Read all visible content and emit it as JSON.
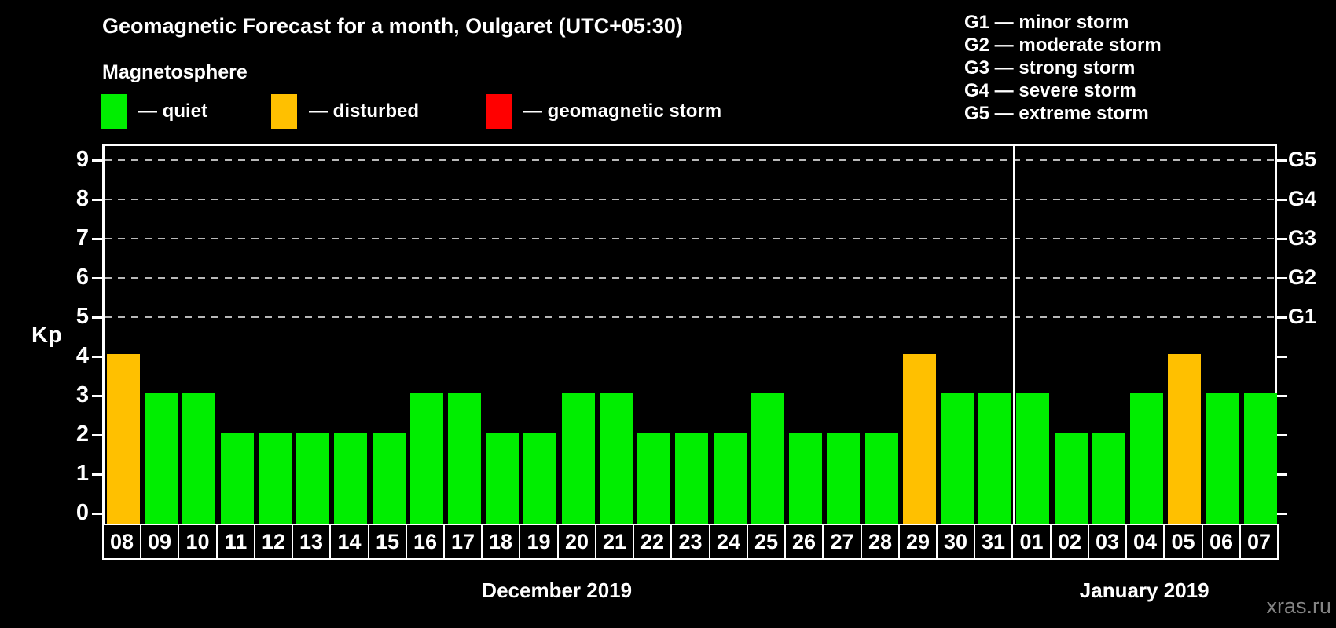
{
  "header": {
    "title": "Geomagnetic Forecast for a month, Oulgaret (UTC+05:30)",
    "subtitle": "Magnetosphere"
  },
  "legend": {
    "items": [
      {
        "name": "quiet",
        "label": "— quiet",
        "color": "#00ee00"
      },
      {
        "name": "disturbed",
        "label": "— disturbed",
        "color": "#ffc000"
      },
      {
        "name": "storm",
        "label": "— geomagnetic storm",
        "color": "#ff0000"
      }
    ]
  },
  "storm_scale_legend": {
    "items": [
      "G1 — minor storm",
      "G2 — moderate storm",
      "G3 — strong storm",
      "G4 — severe storm",
      "G5 — extreme storm"
    ]
  },
  "watermark": "xras.ru",
  "chart_data": {
    "type": "bar",
    "title": "Geomagnetic Forecast for a month, Oulgaret (UTC+05:30)",
    "ylabel": "Kp",
    "ylim": [
      0,
      9
    ],
    "yticks": [
      0,
      1,
      2,
      3,
      4,
      5,
      6,
      7,
      8,
      9
    ],
    "gridlines_at_kp": [
      5,
      6,
      7,
      8,
      9
    ],
    "grid_style": "dashed gray horizontal lines at storm levels only",
    "right_axis_labels": [
      {
        "label": "G5",
        "kp": 9
      },
      {
        "label": "G4",
        "kp": 8
      },
      {
        "label": "G3",
        "kp": 7
      },
      {
        "label": "G2",
        "kp": 6
      },
      {
        "label": "G1",
        "kp": 5
      }
    ],
    "months": [
      {
        "label": "December 2019",
        "start_index": 0,
        "count": 24
      },
      {
        "label": "January 2019",
        "start_index": 24,
        "count": 7
      }
    ],
    "categories": [
      "08",
      "09",
      "10",
      "11",
      "12",
      "13",
      "14",
      "15",
      "16",
      "17",
      "18",
      "19",
      "20",
      "21",
      "22",
      "23",
      "24",
      "25",
      "26",
      "27",
      "28",
      "29",
      "30",
      "31",
      "01",
      "02",
      "03",
      "04",
      "05",
      "06",
      "07"
    ],
    "values": [
      4,
      3,
      3,
      2,
      2,
      2,
      2,
      2,
      3,
      3,
      2,
      2,
      3,
      3,
      2,
      2,
      2,
      3,
      2,
      2,
      2,
      4,
      3,
      3,
      3,
      2,
      2,
      3,
      4,
      3,
      3
    ],
    "statuses": [
      "disturbed",
      "quiet",
      "quiet",
      "quiet",
      "quiet",
      "quiet",
      "quiet",
      "quiet",
      "quiet",
      "quiet",
      "quiet",
      "quiet",
      "quiet",
      "quiet",
      "quiet",
      "quiet",
      "quiet",
      "quiet",
      "quiet",
      "quiet",
      "quiet",
      "disturbed",
      "quiet",
      "quiet",
      "quiet",
      "quiet",
      "quiet",
      "quiet",
      "disturbed",
      "quiet",
      "quiet"
    ],
    "status_colors": {
      "quiet": "#00ee00",
      "disturbed": "#ffc000",
      "storm": "#ff0000"
    }
  }
}
